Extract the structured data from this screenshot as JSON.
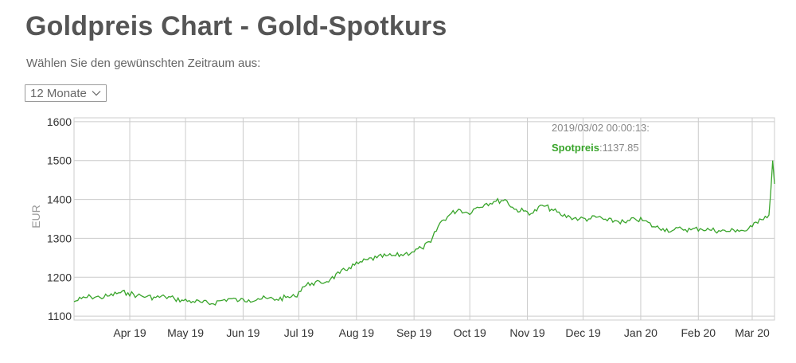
{
  "header": {
    "title": "Goldpreis Chart - Gold-Spotkurs",
    "subtitle": "Wählen Sie den gewünschten Zeitraum aus:"
  },
  "period_select": {
    "value": "12 Monate"
  },
  "tooltip": {
    "timestamp": "2019/03/02 00:00:13:",
    "label": "Spotpreis",
    "value": "1137.85"
  },
  "colors": {
    "line": "#3aa52c",
    "grid": "#cccccc",
    "text": "#555555"
  },
  "chart_data": {
    "type": "line",
    "ylabel": "EUR",
    "ylim": [
      1090,
      1610
    ],
    "yticks": [
      1100,
      1200,
      1300,
      1400,
      1500,
      1600
    ],
    "xlim": [
      "2019-03-02",
      "2020-03-13"
    ],
    "xticks": [
      {
        "date": "2019-04-01",
        "label": "Apr 19"
      },
      {
        "date": "2019-05-01",
        "label": "May 19"
      },
      {
        "date": "2019-06-01",
        "label": "Jun 19"
      },
      {
        "date": "2019-07-01",
        "label": "Jul 19"
      },
      {
        "date": "2019-08-01",
        "label": "Aug 19"
      },
      {
        "date": "2019-09-01",
        "label": "Sep 19"
      },
      {
        "date": "2019-10-01",
        "label": "Oct 19"
      },
      {
        "date": "2019-11-01",
        "label": "Nov 19"
      },
      {
        "date": "2019-12-01",
        "label": "Dec 19"
      },
      {
        "date": "2020-01-01",
        "label": "Jan 20"
      },
      {
        "date": "2020-02-01",
        "label": "Feb 20"
      },
      {
        "date": "2020-03-01",
        "label": "Mar 20"
      }
    ],
    "series": [
      {
        "values": [
          [
            "2019-03-02",
            1137
          ],
          [
            "2019-03-06",
            1145
          ],
          [
            "2019-03-11",
            1150
          ],
          [
            "2019-03-16",
            1148
          ],
          [
            "2019-03-21",
            1152
          ],
          [
            "2019-03-26",
            1160
          ],
          [
            "2019-03-31",
            1160
          ],
          [
            "2019-04-05",
            1153
          ],
          [
            "2019-04-10",
            1150
          ],
          [
            "2019-04-15",
            1148
          ],
          [
            "2019-04-20",
            1150
          ],
          [
            "2019-04-25",
            1145
          ],
          [
            "2019-04-30",
            1140
          ],
          [
            "2019-05-05",
            1138
          ],
          [
            "2019-05-10",
            1135
          ],
          [
            "2019-05-15",
            1132
          ],
          [
            "2019-05-20",
            1140
          ],
          [
            "2019-05-25",
            1145
          ],
          [
            "2019-05-30",
            1140
          ],
          [
            "2019-06-04",
            1142
          ],
          [
            "2019-06-09",
            1145
          ],
          [
            "2019-06-14",
            1145
          ],
          [
            "2019-06-19",
            1143
          ],
          [
            "2019-06-24",
            1148
          ],
          [
            "2019-06-29",
            1150
          ],
          [
            "2019-07-03",
            1175
          ],
          [
            "2019-07-08",
            1185
          ],
          [
            "2019-07-13",
            1185
          ],
          [
            "2019-07-18",
            1195
          ],
          [
            "2019-07-23",
            1210
          ],
          [
            "2019-07-28",
            1225
          ],
          [
            "2019-08-02",
            1235
          ],
          [
            "2019-08-07",
            1245
          ],
          [
            "2019-08-12",
            1250
          ],
          [
            "2019-08-17",
            1255
          ],
          [
            "2019-08-22",
            1255
          ],
          [
            "2019-08-27",
            1260
          ],
          [
            "2019-08-31",
            1265
          ],
          [
            "2019-09-05",
            1275
          ],
          [
            "2019-09-10",
            1290
          ],
          [
            "2019-09-15",
            1340
          ],
          [
            "2019-09-20",
            1360
          ],
          [
            "2019-09-25",
            1375
          ],
          [
            "2019-09-30",
            1365
          ],
          [
            "2019-10-05",
            1380
          ],
          [
            "2019-10-10",
            1390
          ],
          [
            "2019-10-15",
            1395
          ],
          [
            "2019-10-20",
            1400
          ],
          [
            "2019-10-25",
            1375
          ],
          [
            "2019-10-30",
            1370
          ],
          [
            "2019-11-04",
            1365
          ],
          [
            "2019-11-09",
            1385
          ],
          [
            "2019-11-14",
            1375
          ],
          [
            "2019-11-19",
            1360
          ],
          [
            "2019-11-24",
            1355
          ],
          [
            "2019-11-29",
            1350
          ],
          [
            "2019-12-04",
            1350
          ],
          [
            "2019-12-09",
            1355
          ],
          [
            "2019-12-14",
            1345
          ],
          [
            "2019-12-19",
            1345
          ],
          [
            "2019-12-24",
            1340
          ],
          [
            "2019-12-29",
            1350
          ],
          [
            "2020-01-03",
            1345
          ],
          [
            "2020-01-08",
            1330
          ],
          [
            "2020-01-13",
            1325
          ],
          [
            "2020-01-18",
            1320
          ],
          [
            "2020-01-23",
            1325
          ],
          [
            "2020-01-28",
            1322
          ],
          [
            "2020-02-02",
            1325
          ],
          [
            "2020-02-07",
            1322
          ],
          [
            "2020-02-12",
            1320
          ],
          [
            "2020-02-17",
            1318
          ],
          [
            "2020-02-22",
            1322
          ],
          [
            "2020-02-27",
            1320
          ],
          [
            "2020-03-01",
            1330
          ],
          [
            "2020-03-05",
            1350
          ],
          [
            "2020-03-10",
            1360
          ],
          [
            "2020-03-11",
            1420
          ],
          [
            "2020-03-12",
            1500
          ],
          [
            "2020-03-13",
            1440
          ]
        ]
      }
    ]
  }
}
